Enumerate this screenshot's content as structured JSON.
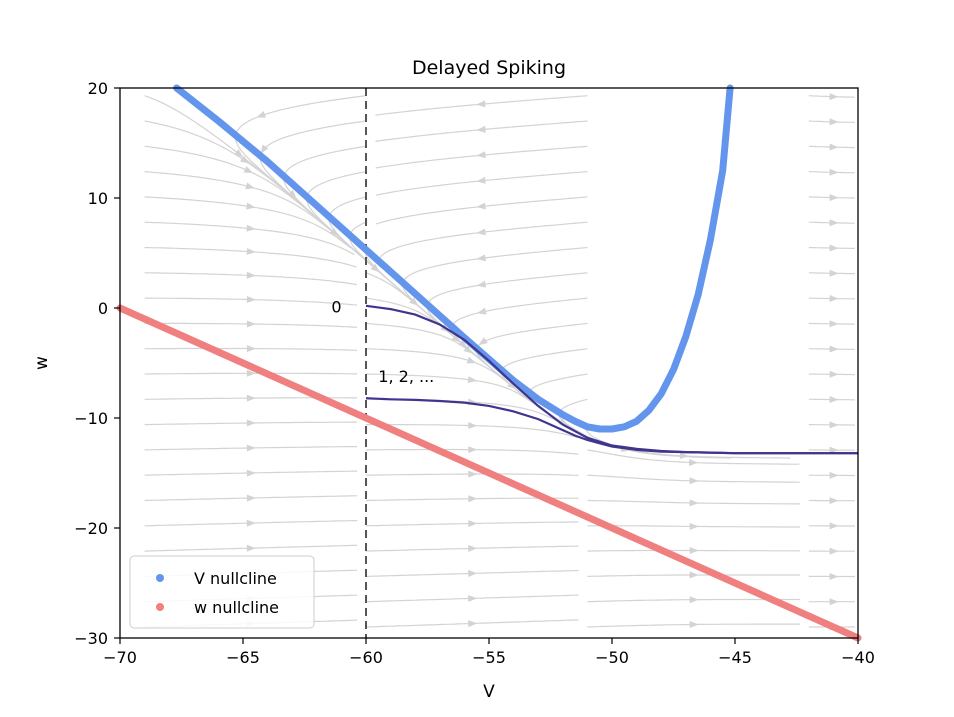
{
  "chart_data": {
    "type": "line",
    "title": "Delayed Spiking",
    "xlabel": "V",
    "ylabel": "w",
    "xlim": [
      -70,
      -40
    ],
    "ylim": [
      -30,
      20
    ],
    "xticks": [
      -70,
      -65,
      -60,
      -55,
      -50,
      -45,
      -40
    ],
    "yticks": [
      -30,
      -20,
      -10,
      0,
      10,
      20
    ],
    "xtick_labels": [
      "−70",
      "−65",
      "−60",
      "−55",
      "−50",
      "−45",
      "−40"
    ],
    "ytick_labels": [
      "−30",
      "−20",
      "−10",
      "0",
      "10",
      "20"
    ],
    "grid": false,
    "legend_position": "lower-left",
    "colors": {
      "v_nullcline": "#6495ed",
      "w_nullcline": "#f08080",
      "trajectory": "#3f358f",
      "reset_line": "#555555",
      "streamlines": "#d3d3d3"
    },
    "series": [
      {
        "name": "V nullcline",
        "x": [
          -67.7,
          -66,
          -64,
          -62,
          -60,
          -58,
          -56,
          -54,
          -53,
          -52,
          -51.5,
          -51,
          -50.5,
          -50.2,
          -50,
          -49.5,
          -49,
          -48.5,
          -48,
          -47.5,
          -47,
          -46.5,
          -46,
          -45.5,
          -45.2
        ],
        "y": [
          20,
          17,
          13.3,
          9.3,
          5.3,
          1.3,
          -2.7,
          -6.6,
          -8.3,
          -9.7,
          -10.3,
          -10.8,
          -11.0,
          -11.0,
          -11.0,
          -10.8,
          -10.3,
          -9.3,
          -7.8,
          -5.6,
          -2.6,
          1.2,
          6.2,
          12.5,
          20
        ]
      },
      {
        "name": "w nullcline",
        "x": [
          -70,
          -40
        ],
        "y": [
          0,
          -30
        ]
      }
    ],
    "trajectories": [
      {
        "x": [
          -60,
          -59,
          -58,
          -57,
          -56,
          -55,
          -54,
          -53,
          -52,
          -51,
          -50,
          -49,
          -48,
          -47,
          -46,
          -45,
          -44,
          -43,
          -42,
          -41,
          -40
        ],
        "y": [
          0.2,
          -0.1,
          -0.6,
          -1.5,
          -2.9,
          -4.8,
          -6.9,
          -8.9,
          -10.6,
          -11.8,
          -12.5,
          -12.8,
          -13.0,
          -13.1,
          -13.15,
          -13.2,
          -13.2,
          -13.2,
          -13.2,
          -13.2,
          -13.2
        ]
      },
      {
        "x": [
          -60,
          -59,
          -58,
          -57,
          -56,
          -55,
          -54,
          -53,
          -52.5,
          -52,
          -51.5,
          -51,
          -50.5,
          -50,
          -49,
          -48,
          -47,
          -46,
          -45,
          -44,
          -43,
          -42,
          -41,
          -40
        ],
        "y": [
          -8.2,
          -8.3,
          -8.35,
          -8.45,
          -8.6,
          -8.9,
          -9.4,
          -10.1,
          -10.6,
          -11.1,
          -11.6,
          -12.0,
          -12.3,
          -12.6,
          -12.9,
          -13.05,
          -13.1,
          -13.15,
          -13.2,
          -13.2,
          -13.2,
          -13.2,
          -13.2,
          -13.2
        ]
      }
    ],
    "reset_line": {
      "x": -60
    },
    "annotations": [
      {
        "text": "0",
        "x": -61.2,
        "y": 0
      },
      {
        "text": "1, 2, ...",
        "x": -59.5,
        "y": -6.3
      }
    ]
  }
}
